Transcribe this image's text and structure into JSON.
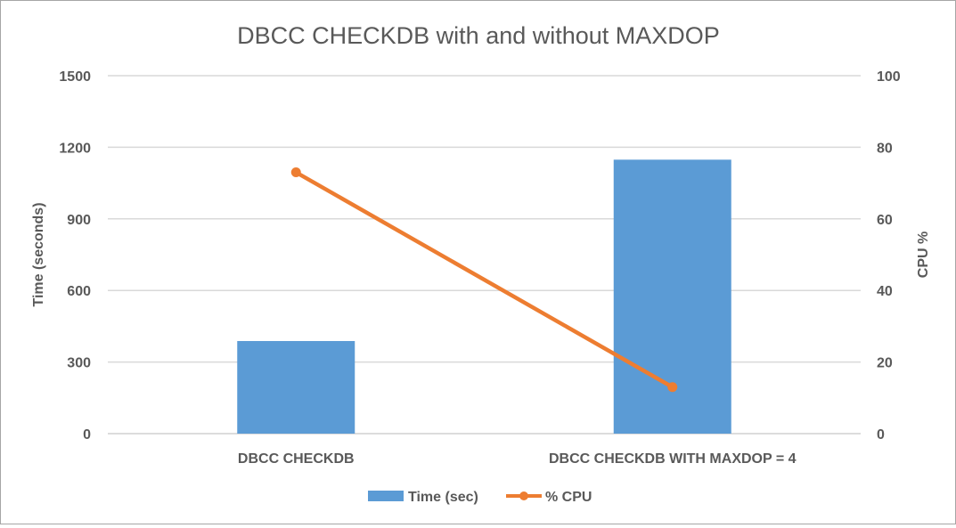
{
  "chart_data": {
    "type": "bar+line",
    "title": "DBCC CHECKDB with and without MAXDOP",
    "categories": [
      "DBCC CHECKDB",
      "DBCC CHECKDB WITH MAXDOP = 4"
    ],
    "series": [
      {
        "name": "Time (sec)",
        "type": "bar",
        "axis": "left",
        "values": [
          388,
          1148
        ],
        "color": "#5b9bd5"
      },
      {
        "name": "% CPU",
        "type": "line",
        "axis": "right",
        "values": [
          73,
          13
        ],
        "color": "#ed7d31"
      }
    ],
    "ylabel": "Time (seconds)",
    "ylabel_right": "CPU %",
    "ylim": [
      0,
      1500
    ],
    "yticks": [
      "0",
      "300",
      "600",
      "900",
      "1200",
      "1500"
    ],
    "ylim_right": [
      0,
      100
    ],
    "yticks_right": [
      "0",
      "20",
      "40",
      "60",
      "80",
      "100"
    ],
    "grid": true,
    "legend": "bottom"
  }
}
